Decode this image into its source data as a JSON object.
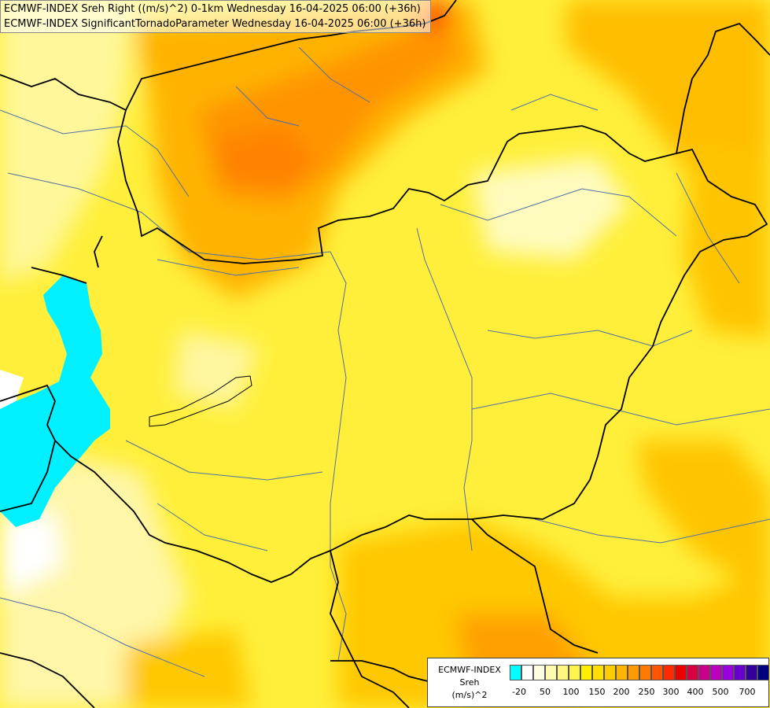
{
  "title_lines": [
    "ECMWF-INDEX Sreh Right ((m/s)^2) 0-1km Wednesday 16-04-2025 06:00 (+36h)",
    "ECMWF-INDEX SignificantTornadoParameter Wednesday 16-04-2025 06:00 (+36h)"
  ],
  "legend": {
    "title_lines": [
      "ECMWF-INDEX",
      "Sreh",
      "(m/s)^2"
    ],
    "colors": [
      "#00ffff",
      "#ffffff",
      "#fffde0",
      "#fffab0",
      "#fff780",
      "#fff350",
      "#ffee00",
      "#ffe000",
      "#ffcc00",
      "#ffb400",
      "#ff9a00",
      "#ff7a00",
      "#ff5500",
      "#ff2a00",
      "#ee0000",
      "#d80040",
      "#cc0088",
      "#bb00bb",
      "#9900dd",
      "#6600cc",
      "#330099",
      "#000080"
    ],
    "tick_labels": [
      "-20",
      "50",
      "100",
      "150",
      "200",
      "250",
      "300",
      "400",
      "500",
      "700"
    ]
  }
}
